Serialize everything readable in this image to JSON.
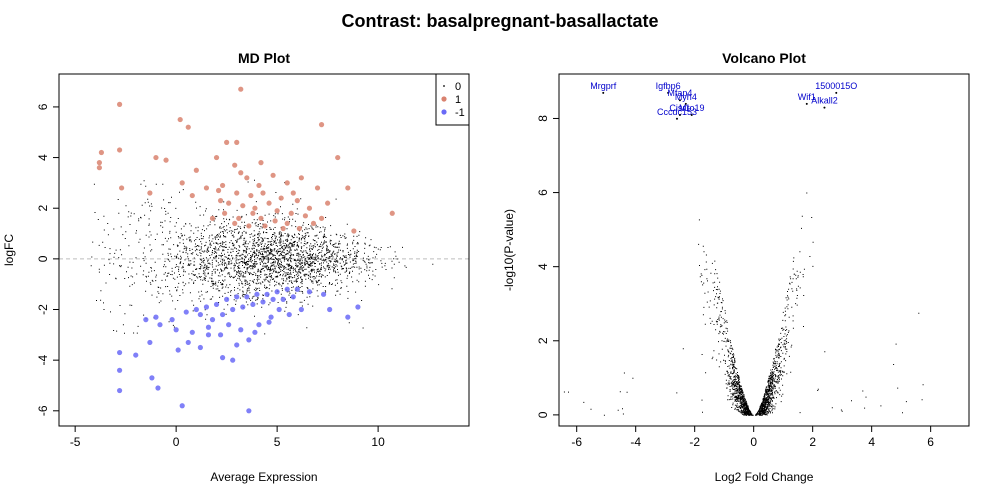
{
  "figure": {
    "title": "Contrast: basalpregnant-basallactate"
  },
  "colors": {
    "up": "#d9826f",
    "down": "#6a6af7",
    "ns": "#000000",
    "gene_label": "#0000cc",
    "ref_line": "#bdbdbd"
  },
  "chart_data": [
    {
      "type": "scatter",
      "title": "MD Plot",
      "xlabel": "Average Expression",
      "ylabel": "logFC",
      "xlim": [
        -5.8,
        14.5
      ],
      "ylim": [
        -6.6,
        7.3
      ],
      "xticks": [
        -5,
        0,
        5,
        10
      ],
      "yticks": [
        -6,
        -4,
        -2,
        0,
        2,
        4,
        6
      ],
      "reference_line_y": 0,
      "legend": {
        "placement": "top-right",
        "entries": [
          "0",
          "1",
          "-1"
        ]
      },
      "series": [
        {
          "name": "1",
          "points": [
            [
              -2.8,
              6.1
            ],
            [
              3.2,
              6.7
            ],
            [
              0.2,
              5.5
            ],
            [
              0.6,
              5.2
            ],
            [
              7.2,
              5.3
            ],
            [
              2.5,
              4.6
            ],
            [
              3.0,
              4.6
            ],
            [
              -3.7,
              4.2
            ],
            [
              -2.8,
              4.3
            ],
            [
              -3.8,
              3.8
            ],
            [
              -3.8,
              3.6
            ],
            [
              -1.0,
              4.0
            ],
            [
              -0.5,
              3.9
            ],
            [
              2.0,
              4.0
            ],
            [
              8.0,
              4.0
            ],
            [
              4.2,
              3.8
            ],
            [
              2.9,
              3.7
            ],
            [
              1.0,
              3.5
            ],
            [
              3.2,
              3.4
            ],
            [
              4.8,
              3.3
            ],
            [
              6.2,
              3.2
            ],
            [
              0.3,
              3.0
            ],
            [
              2.3,
              2.9
            ],
            [
              3.5,
              3.2
            ],
            [
              5.5,
              3.0
            ],
            [
              7.0,
              2.8
            ],
            [
              8.5,
              2.8
            ],
            [
              -2.7,
              2.8
            ],
            [
              -1.3,
              2.6
            ],
            [
              0.8,
              2.5
            ],
            [
              1.5,
              2.8
            ],
            [
              2.1,
              2.7
            ],
            [
              3.0,
              2.6
            ],
            [
              3.7,
              2.5
            ],
            [
              4.3,
              2.6
            ],
            [
              5.2,
              2.4
            ],
            [
              6.0,
              2.3
            ],
            [
              7.5,
              2.2
            ],
            [
              2.6,
              2.2
            ],
            [
              3.3,
              2.1
            ],
            [
              3.9,
              2.0
            ],
            [
              4.6,
              2.2
            ],
            [
              5.0,
              1.9
            ],
            [
              5.7,
              1.8
            ],
            [
              6.4,
              1.7
            ],
            [
              7.2,
              1.6
            ],
            [
              2.4,
              1.8
            ],
            [
              3.1,
              1.6
            ],
            [
              4.2,
              1.6
            ],
            [
              4.9,
              1.5
            ],
            [
              5.5,
              1.4
            ],
            [
              6.8,
              1.4
            ],
            [
              3.6,
              1.3
            ],
            [
              4.4,
              1.3
            ],
            [
              5.3,
              1.2
            ],
            [
              6.1,
              1.2
            ],
            [
              8.8,
              1.1
            ],
            [
              10.7,
              1.8
            ],
            [
              2.9,
              1.4
            ],
            [
              3.8,
              1.8
            ],
            [
              2.2,
              2.3
            ],
            [
              1.8,
              1.6
            ],
            [
              6.6,
              2.0
            ],
            [
              5.8,
              2.6
            ],
            [
              4.1,
              2.9
            ]
          ]
        },
        {
          "name": "-1",
          "points": [
            [
              -1.5,
              -2.4
            ],
            [
              -1.0,
              -2.3
            ],
            [
              -0.8,
              -2.6
            ],
            [
              -0.2,
              -2.4
            ],
            [
              0.5,
              -2.1
            ],
            [
              1.0,
              -2.0
            ],
            [
              1.5,
              -1.9
            ],
            [
              2.0,
              -1.8
            ],
            [
              2.5,
              -1.6
            ],
            [
              3.0,
              -1.5
            ],
            [
              3.5,
              -1.5
            ],
            [
              4.0,
              -1.4
            ],
            [
              4.5,
              -1.4
            ],
            [
              5.0,
              -1.3
            ],
            [
              5.5,
              -1.2
            ],
            [
              6.0,
              -1.2
            ],
            [
              6.6,
              -1.3
            ],
            [
              7.3,
              -1.4
            ],
            [
              1.2,
              -2.2
            ],
            [
              1.8,
              -2.4
            ],
            [
              2.3,
              -2.2
            ],
            [
              2.8,
              -2.0
            ],
            [
              3.3,
              -1.9
            ],
            [
              3.8,
              -1.8
            ],
            [
              4.3,
              -1.7
            ],
            [
              4.8,
              -1.6
            ],
            [
              5.3,
              -1.6
            ],
            [
              5.8,
              -1.5
            ],
            [
              0.0,
              -2.8
            ],
            [
              0.8,
              -2.9
            ],
            [
              1.6,
              -2.7
            ],
            [
              2.6,
              -2.6
            ],
            [
              3.2,
              -2.8
            ],
            [
              4.1,
              -2.6
            ],
            [
              4.7,
              -2.3
            ],
            [
              5.6,
              -2.2
            ],
            [
              3.6,
              -3.2
            ],
            [
              2.2,
              -3.0
            ],
            [
              4.6,
              -2.5
            ],
            [
              6.2,
              -2.0
            ],
            [
              7.6,
              -2.0
            ],
            [
              8.5,
              -2.3
            ],
            [
              9.0,
              -1.9
            ],
            [
              -2.8,
              -3.7
            ],
            [
              -2.0,
              -3.8
            ],
            [
              -1.3,
              -3.3
            ],
            [
              -2.8,
              -4.4
            ],
            [
              -1.2,
              -4.7
            ],
            [
              -2.8,
              -5.2
            ],
            [
              -0.9,
              -5.1
            ],
            [
              0.3,
              -5.8
            ],
            [
              3.6,
              -6.0
            ],
            [
              0.1,
              -3.6
            ],
            [
              1.2,
              -3.5
            ],
            [
              2.3,
              -3.9
            ],
            [
              2.8,
              -4.0
            ],
            [
              3.0,
              -3.4
            ],
            [
              1.6,
              -3.0
            ],
            [
              0.6,
              -3.3
            ],
            [
              3.9,
              -2.9
            ],
            [
              5.1,
              -2.0
            ]
          ]
        }
      ]
    },
    {
      "type": "scatter",
      "title": "Volcano Plot",
      "xlabel": "Log2 Fold Change",
      "ylabel": "-log10(P-value)",
      "xlim": [
        -6.6,
        7.3
      ],
      "ylim": [
        -0.3,
        9.2
      ],
      "xticks": [
        -6,
        -4,
        -2,
        0,
        2,
        4,
        6
      ],
      "yticks": [
        0,
        2,
        4,
        6,
        8
      ],
      "labeled_points": [
        {
          "label": "Mrgprf",
          "x": -5.1,
          "y": 8.8
        },
        {
          "label": "Igfbp6",
          "x": -2.9,
          "y": 8.8
        },
        {
          "label": "Mfap4",
          "x": -2.5,
          "y": 8.6
        },
        {
          "label": "Myh4",
          "x": -2.3,
          "y": 8.5
        },
        {
          "label": "Cccdc153",
          "x": -2.6,
          "y": 8.1
        },
        {
          "label": "Cisr1",
          "x": -2.5,
          "y": 8.2
        },
        {
          "label": "Mro19",
          "x": -2.1,
          "y": 8.2
        },
        {
          "label": "1500015O",
          "x": 2.8,
          "y": 8.8
        },
        {
          "label": "Wif1",
          "x": 1.8,
          "y": 8.5
        },
        {
          "label": "Alkall2",
          "x": 2.4,
          "y": 8.4
        }
      ]
    }
  ]
}
